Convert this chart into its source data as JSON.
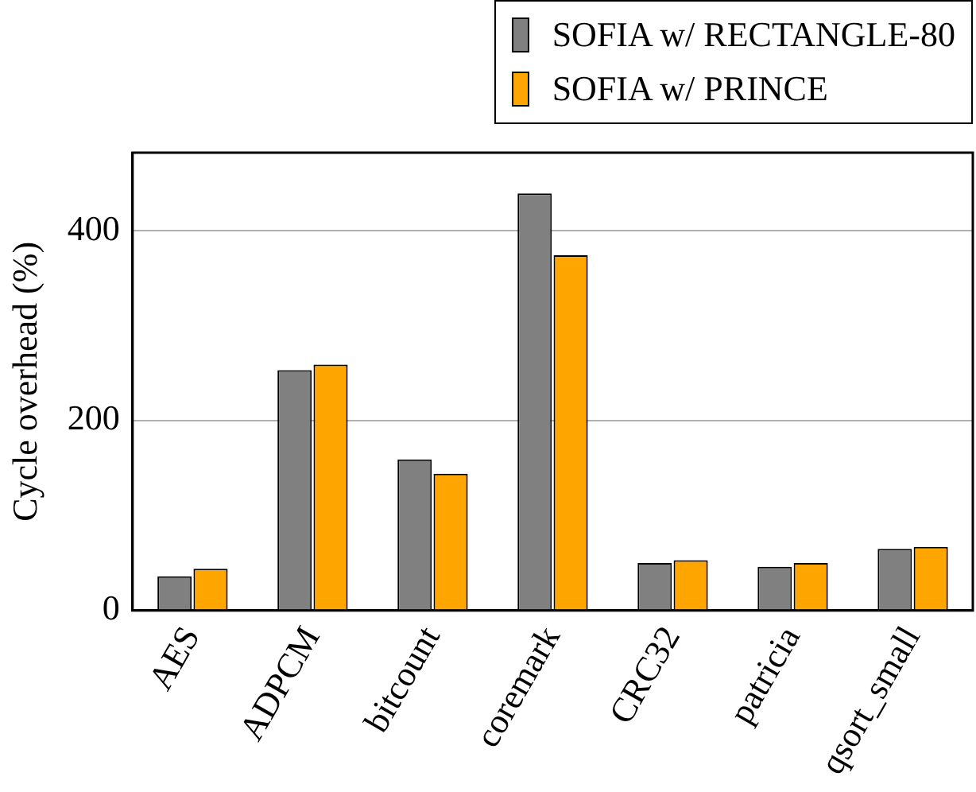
{
  "chart_data": {
    "type": "bar",
    "ylabel": "Cycle overhead (%)",
    "categories": [
      "AES",
      "ADPCM",
      "bitcount",
      "coremark",
      "CRC32",
      "patricia",
      "qsort_small"
    ],
    "series": [
      {
        "name": "SOFIA w/ RECTANGLE-80",
        "color": "#808080",
        "values": [
          36,
          253,
          159,
          439,
          50,
          46,
          65
        ]
      },
      {
        "name": "SOFIA w/ PRINCE",
        "color": "#ffa500",
        "values": [
          44,
          259,
          144,
          374,
          53,
          50,
          67
        ]
      }
    ],
    "ylim": [
      0,
      482
    ],
    "yticks": [
      0,
      200,
      400
    ],
    "grid": "y",
    "legend": "top right"
  }
}
